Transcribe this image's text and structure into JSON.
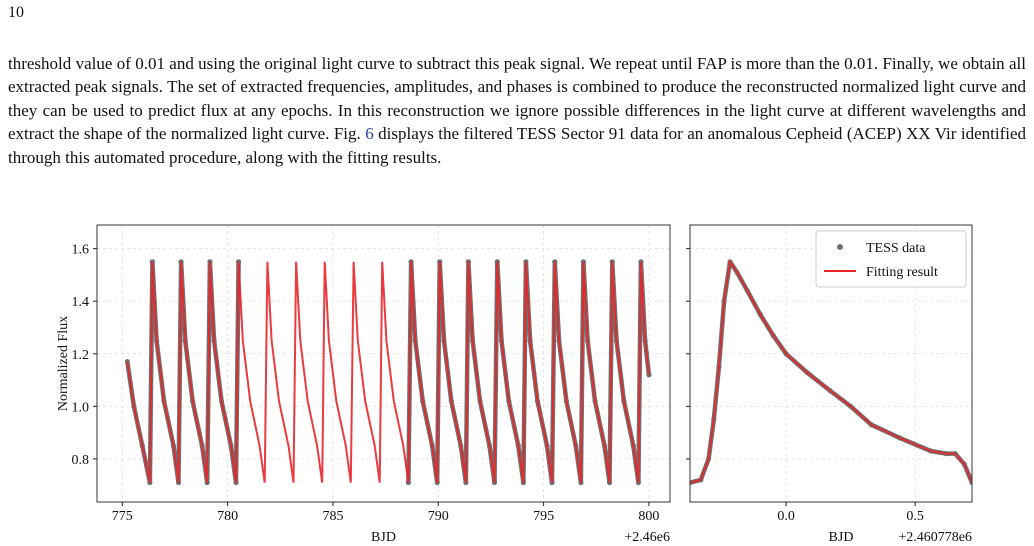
{
  "page_number": "10",
  "paragraph": {
    "before": "threshold value of 0.01 and using the original light curve to subtract this peak signal. We repeat until FAP is more than the 0.01. Finally, we obtain all extracted peak signals. The set of extracted frequencies, amplitudes, and phases is combined to produce the reconstructed normalized light curve and they can be used to predict flux at any epochs. In this reconstruction we ignore possible differences in the light curve at different wavelengths and extract the shape of the normalized light curve. Fig. ",
    "link": "6",
    "after": " displays the filtered TESS Sector 91 data for an anomalous Cepheid (ACEP) XX Vir identified through this automated procedure, along with the fitting results."
  },
  "chart_data": [
    {
      "type": "line",
      "xlabel": "BJD",
      "ylabel": "Normalized Flux",
      "x_offset_label": "+2.46e6",
      "xlim": [
        773.8,
        801.0
      ],
      "ylim": [
        0.636,
        1.69
      ],
      "xticks": [
        775,
        780,
        785,
        790,
        795,
        800
      ],
      "yticks": [
        0.8,
        {
          "value": 1,
          "label": "1.0"
        },
        1.2,
        1.4,
        1.6
      ],
      "show_ytick_labels": true,
      "grid": true,
      "series": [
        {
          "name": "TESS data",
          "color": "#707070",
          "marker": "o",
          "x": [
            775.24,
            775.55,
            775.95,
            776.31,
            776.43,
            776.63,
            776.98,
            777.43,
            777.67,
            777.79,
            777.99,
            778.34,
            778.79,
            779.03,
            779.16,
            779.36,
            779.71,
            780.16,
            780.4,
            780.52,
            784.61,
            788.58,
            788.71,
            788.91,
            789.26,
            789.71,
            789.95,
            790.07,
            790.27,
            790.62,
            791.07,
            791.31,
            791.43,
            791.63,
            791.98,
            792.43,
            792.67,
            792.8,
            793.0,
            793.35,
            793.8,
            794.04,
            794.16,
            794.36,
            794.71,
            795.16,
            795.4,
            795.53,
            795.73,
            796.08,
            796.53,
            796.77,
            796.89,
            797.09,
            797.44,
            797.89,
            798.13,
            798.26,
            798.46,
            798.81,
            799.26,
            799.5,
            799.62,
            799.82,
            800.0
          ],
          "values": [
            1.17,
            1.0,
            0.85,
            0.71,
            1.55,
            1.25,
            1.02,
            0.85,
            0.71,
            1.55,
            1.25,
            1.02,
            0.85,
            0.71,
            1.55,
            1.25,
            1.02,
            0.85,
            0.71,
            1.55,
            null,
            0.71,
            1.55,
            1.25,
            1.02,
            0.85,
            0.71,
            1.55,
            1.25,
            1.02,
            0.85,
            0.71,
            1.55,
            1.25,
            1.02,
            0.85,
            0.71,
            1.55,
            1.25,
            1.02,
            0.85,
            0.71,
            1.55,
            1.25,
            1.02,
            0.85,
            0.71,
            1.55,
            1.25,
            1.02,
            0.85,
            0.71,
            1.55,
            1.25,
            1.02,
            0.85,
            0.71,
            1.55,
            1.25,
            1.02,
            0.85,
            0.71,
            1.55,
            1.25,
            1.12
          ]
        },
        {
          "name": "Fitting result",
          "color": "#e8262a",
          "x": [
            775.24,
            775.55,
            775.95,
            776.31,
            776.43,
            776.63,
            776.98,
            777.43,
            777.67,
            777.79,
            777.99,
            778.34,
            778.79,
            779.03,
            779.16,
            779.36,
            779.71,
            780.16,
            780.4,
            780.52,
            780.72,
            781.07,
            781.52,
            781.76,
            781.89,
            782.09,
            782.44,
            782.89,
            783.13,
            783.25,
            783.45,
            783.8,
            784.25,
            784.49,
            784.61,
            784.81,
            785.16,
            785.61,
            785.85,
            785.98,
            786.18,
            786.53,
            786.98,
            787.22,
            787.34,
            787.54,
            787.89,
            788.34,
            788.58,
            788.71,
            788.91,
            789.26,
            789.71,
            789.95,
            790.07,
            790.27,
            790.62,
            791.07,
            791.31,
            791.43,
            791.63,
            791.98,
            792.43,
            792.67,
            792.8,
            793.0,
            793.35,
            793.8,
            794.04,
            794.16,
            794.36,
            794.71,
            795.16,
            795.4,
            795.53,
            795.73,
            796.08,
            796.53,
            796.77,
            796.89,
            797.09,
            797.44,
            797.89,
            798.13,
            798.26,
            798.46,
            798.81,
            799.26,
            799.5,
            799.62,
            799.82,
            800.0
          ],
          "values": [
            1.17,
            1.0,
            0.85,
            0.71,
            1.55,
            1.25,
            1.02,
            0.85,
            0.71,
            1.55,
            1.25,
            1.02,
            0.85,
            0.71,
            1.55,
            1.25,
            1.02,
            0.85,
            0.71,
            1.55,
            1.25,
            1.02,
            0.85,
            0.71,
            1.55,
            1.25,
            1.02,
            0.85,
            0.71,
            1.55,
            1.25,
            1.02,
            0.85,
            0.71,
            1.55,
            1.25,
            1.02,
            0.85,
            0.71,
            1.55,
            1.25,
            1.02,
            0.85,
            0.71,
            1.55,
            1.25,
            1.02,
            0.85,
            0.71,
            1.55,
            1.25,
            1.02,
            0.85,
            0.71,
            1.55,
            1.25,
            1.02,
            0.85,
            0.71,
            1.55,
            1.25,
            1.02,
            0.85,
            0.71,
            1.55,
            1.25,
            1.02,
            0.85,
            0.71,
            1.55,
            1.25,
            1.02,
            0.85,
            0.71,
            1.55,
            1.25,
            1.02,
            0.85,
            0.71,
            1.55,
            1.25,
            1.02,
            0.85,
            0.71,
            1.55,
            1.25,
            1.02,
            0.85,
            0.71,
            1.55,
            1.25,
            1.12
          ]
        }
      ]
    },
    {
      "type": "line",
      "xlabel": "BJD",
      "x_offset_label": "+2.460778e6",
      "xlim": [
        -0.372,
        0.72
      ],
      "ylim": [
        0.636,
        1.69
      ],
      "xticks": [
        {
          "value": 0,
          "label": "0.0"
        },
        0.5
      ],
      "yticks": [
        0.8,
        {
          "value": 1,
          "label": "1.0"
        },
        1.2,
        1.4,
        1.6
      ],
      "show_ytick_labels": false,
      "grid": true,
      "legend": "upper right",
      "series": [
        {
          "name": "TESS data",
          "color": "#707070",
          "marker": "o",
          "x": [
            -0.372,
            -0.33,
            -0.3,
            -0.28,
            -0.26,
            -0.24,
            -0.217,
            -0.19,
            -0.15,
            -0.1,
            -0.05,
            0.0,
            0.08,
            0.17,
            0.25,
            0.33,
            0.44,
            0.56,
            0.62,
            0.655,
            0.69,
            0.72
          ],
          "values": [
            0.71,
            0.72,
            0.8,
            0.95,
            1.15,
            1.4,
            1.55,
            1.51,
            1.44,
            1.35,
            1.27,
            1.2,
            1.13,
            1.06,
            1.0,
            0.93,
            0.88,
            0.83,
            0.82,
            0.82,
            0.78,
            0.71
          ]
        },
        {
          "name": "Fitting result",
          "color": "#e8262a",
          "x": [
            -0.372,
            -0.33,
            -0.3,
            -0.28,
            -0.26,
            -0.24,
            -0.217,
            -0.19,
            -0.15,
            -0.1,
            -0.05,
            0.0,
            0.08,
            0.17,
            0.25,
            0.33,
            0.44,
            0.56,
            0.62,
            0.655,
            0.69,
            0.72
          ],
          "values": [
            0.71,
            0.72,
            0.8,
            0.95,
            1.15,
            1.4,
            1.55,
            1.51,
            1.44,
            1.35,
            1.27,
            1.2,
            1.13,
            1.06,
            1.0,
            0.93,
            0.88,
            0.83,
            0.82,
            0.82,
            0.78,
            0.71
          ]
        }
      ]
    }
  ]
}
